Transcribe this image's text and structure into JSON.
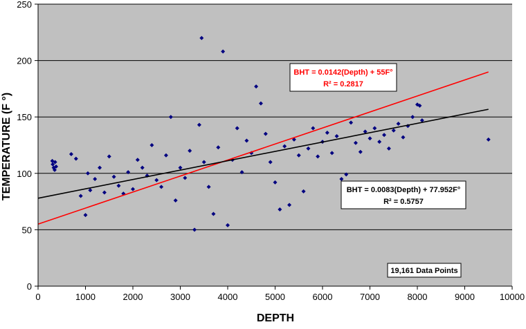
{
  "chart_data": {
    "type": "scatter",
    "xlabel": "DEPTH",
    "ylabel": "TEMPERATURE (F °)",
    "xlim": [
      0,
      10000
    ],
    "ylim": [
      0,
      250
    ],
    "x_ticks": [
      "0",
      "1000",
      "2000",
      "3000",
      "4000",
      "5000",
      "6000",
      "7000",
      "8000",
      "9000",
      "10000"
    ],
    "y_ticks": [
      "0",
      "50",
      "100",
      "150",
      "200",
      "250"
    ],
    "grid": "horizontal",
    "colors": {
      "plot_area": "#c0c0c0",
      "points": "#000080",
      "linear_fit": "#ff0000",
      "second_fit": "#000000"
    },
    "data_points_label": "19,161 Data Points",
    "trendlines": [
      {
        "intercept": 55,
        "slope": 0.0142,
        "x_range": [
          0,
          9500
        ],
        "color": "#ff0000",
        "equation_text": "BHT = 0.0142(Depth) + 55F°",
        "r2_text": "R² = 0.2817"
      },
      {
        "intercept": 77.952,
        "slope": 0.0083,
        "x_range": [
          0,
          9500
        ],
        "color": "#000000",
        "equation_text": "BHT = 0.0083(Depth) + 77.952F°",
        "r2_text": "R² = 0.5757"
      }
    ],
    "points": [
      [
        300,
        111
      ],
      [
        310,
        108
      ],
      [
        330,
        105
      ],
      [
        350,
        103
      ],
      [
        360,
        110
      ],
      [
        380,
        106
      ],
      [
        700,
        117
      ],
      [
        800,
        113
      ],
      [
        900,
        80
      ],
      [
        1000,
        63
      ],
      [
        1050,
        100
      ],
      [
        1100,
        85
      ],
      [
        1200,
        95
      ],
      [
        1300,
        105
      ],
      [
        1400,
        83
      ],
      [
        1500,
        115
      ],
      [
        1600,
        97
      ],
      [
        1700,
        89
      ],
      [
        1800,
        82
      ],
      [
        1900,
        101
      ],
      [
        2000,
        86
      ],
      [
        2100,
        112
      ],
      [
        2200,
        105
      ],
      [
        2300,
        98
      ],
      [
        2400,
        125
      ],
      [
        2500,
        94
      ],
      [
        2600,
        88
      ],
      [
        2700,
        116
      ],
      [
        2800,
        150
      ],
      [
        2900,
        76
      ],
      [
        3000,
        105
      ],
      [
        3100,
        96
      ],
      [
        3200,
        120
      ],
      [
        3300,
        50
      ],
      [
        3400,
        143
      ],
      [
        3450,
        220
      ],
      [
        3500,
        110
      ],
      [
        3600,
        88
      ],
      [
        3700,
        64
      ],
      [
        3800,
        123
      ],
      [
        3900,
        208
      ],
      [
        4000,
        54
      ],
      [
        4100,
        112
      ],
      [
        4200,
        140
      ],
      [
        4300,
        101
      ],
      [
        4400,
        129
      ],
      [
        4500,
        118
      ],
      [
        4600,
        177
      ],
      [
        4700,
        162
      ],
      [
        4800,
        135
      ],
      [
        4900,
        110
      ],
      [
        5000,
        92
      ],
      [
        5100,
        68
      ],
      [
        5200,
        124
      ],
      [
        5300,
        72
      ],
      [
        5400,
        130
      ],
      [
        5500,
        116
      ],
      [
        5600,
        84
      ],
      [
        5700,
        122
      ],
      [
        5800,
        140
      ],
      [
        5900,
        115
      ],
      [
        6000,
        128
      ],
      [
        6100,
        136
      ],
      [
        6200,
        118
      ],
      [
        6300,
        133
      ],
      [
        6400,
        95
      ],
      [
        6500,
        99
      ],
      [
        6600,
        145
      ],
      [
        6700,
        127
      ],
      [
        6800,
        119
      ],
      [
        6900,
        137
      ],
      [
        7000,
        131
      ],
      [
        7100,
        140
      ],
      [
        7200,
        128
      ],
      [
        7300,
        134
      ],
      [
        7400,
        122
      ],
      [
        7500,
        138
      ],
      [
        7600,
        144
      ],
      [
        7700,
        132
      ],
      [
        7800,
        142
      ],
      [
        7900,
        150
      ],
      [
        8000,
        161
      ],
      [
        8050,
        160
      ],
      [
        8100,
        147
      ],
      [
        9500,
        130
      ]
    ]
  }
}
